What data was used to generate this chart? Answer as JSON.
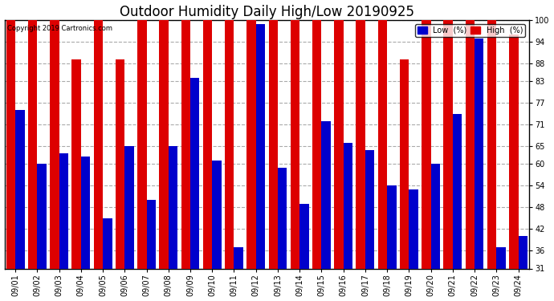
{
  "title": "Outdoor Humidity Daily High/Low 20190925",
  "copyright": "Copyright 2019 Cartronics.com",
  "dates": [
    "09/01",
    "09/02",
    "09/03",
    "09/04",
    "09/05",
    "09/06",
    "09/07",
    "09/08",
    "09/09",
    "09/10",
    "09/11",
    "09/12",
    "09/13",
    "09/14",
    "09/15",
    "09/16",
    "09/17",
    "09/18",
    "09/19",
    "09/20",
    "09/21",
    "09/22",
    "09/23",
    "09/24"
  ],
  "high": [
    100,
    100,
    100,
    89,
    100,
    89,
    100,
    100,
    100,
    100,
    100,
    100,
    100,
    100,
    100,
    100,
    100,
    100,
    89,
    100,
    100,
    100,
    100,
    96
  ],
  "low": [
    75,
    60,
    63,
    62,
    45,
    65,
    50,
    65,
    84,
    61,
    37,
    99,
    59,
    49,
    72,
    66,
    64,
    54,
    53,
    60,
    74,
    95,
    37,
    40
  ],
  "ylim_min": 31,
  "ylim_max": 100,
  "yticks": [
    31,
    36,
    42,
    48,
    54,
    60,
    65,
    71,
    77,
    83,
    88,
    94,
    100
  ],
  "bar_width": 0.42,
  "low_color": "#0000cc",
  "high_color": "#dd0000",
  "bg_color": "#ffffff",
  "grid_color": "#aaaaaa",
  "title_fontsize": 12,
  "tick_fontsize": 7
}
